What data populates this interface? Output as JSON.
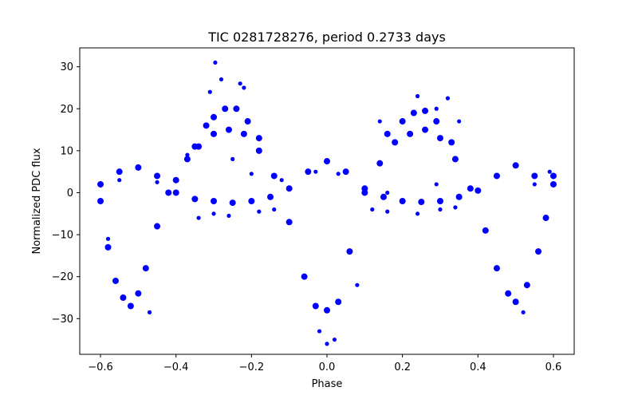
{
  "chart_data": {
    "type": "scatter",
    "title": "TIC 0281728276, period 0.2733 days",
    "xlabel": "Phase",
    "ylabel": "Normalized PDC flux",
    "xlim": [
      -0.655,
      0.655
    ],
    "ylim": [
      -38.5,
      34.5
    ],
    "xticks": [
      -0.6,
      -0.4,
      -0.2,
      0.0,
      0.2,
      0.4,
      0.6
    ],
    "xtick_labels": [
      "−0.6",
      "−0.4",
      "−0.2",
      "0.0",
      "0.2",
      "0.4",
      "0.6"
    ],
    "yticks": [
      -30,
      -20,
      -10,
      0,
      10,
      20,
      30
    ],
    "ytick_labels": [
      "−30",
      "−20",
      "−10",
      "0",
      "10",
      "20",
      "30"
    ],
    "grid": false,
    "marker_color": "#0000ff",
    "series": [
      {
        "values": [
          {
            "x": -0.6,
            "y": -2
          },
          {
            "x": -0.58,
            "y": -13
          },
          {
            "x": -0.56,
            "y": -21
          },
          {
            "x": -0.54,
            "y": -25
          },
          {
            "x": -0.52,
            "y": -27
          },
          {
            "x": -0.5,
            "y": -24
          },
          {
            "x": -0.48,
            "y": -18
          },
          {
            "x": -0.45,
            "y": -8
          },
          {
            "x": -0.42,
            "y": 0
          },
          {
            "x": -0.4,
            "y": 3
          },
          {
            "x": -0.37,
            "y": 8
          },
          {
            "x": -0.34,
            "y": 11
          },
          {
            "x": -0.3,
            "y": 14
          },
          {
            "x": -0.26,
            "y": 15
          },
          {
            "x": -0.22,
            "y": 14
          },
          {
            "x": -0.18,
            "y": 10
          },
          {
            "x": -0.14,
            "y": 4
          },
          {
            "x": -0.1,
            "y": -7
          },
          {
            "x": -0.06,
            "y": -20
          },
          {
            "x": -0.03,
            "y": -27
          },
          {
            "x": 0.0,
            "y": -28
          },
          {
            "x": 0.03,
            "y": -26
          },
          {
            "x": 0.06,
            "y": -14
          },
          {
            "x": 0.1,
            "y": 0
          },
          {
            "x": 0.14,
            "y": 7
          },
          {
            "x": 0.18,
            "y": 12
          },
          {
            "x": 0.22,
            "y": 14
          },
          {
            "x": 0.26,
            "y": 15
          },
          {
            "x": 0.3,
            "y": 13
          },
          {
            "x": 0.34,
            "y": 8
          },
          {
            "x": 0.38,
            "y": 1
          },
          {
            "x": 0.42,
            "y": -9
          },
          {
            "x": 0.45,
            "y": -18
          },
          {
            "x": 0.48,
            "y": -24
          },
          {
            "x": 0.5,
            "y": -26
          },
          {
            "x": 0.53,
            "y": -22
          },
          {
            "x": 0.56,
            "y": -14
          },
          {
            "x": 0.58,
            "y": -6
          },
          {
            "x": 0.6,
            "y": 4
          }
        ]
      },
      {
        "values": [
          {
            "x": -0.6,
            "y": 2
          },
          {
            "x": -0.55,
            "y": 5
          },
          {
            "x": -0.5,
            "y": 6
          },
          {
            "x": -0.45,
            "y": 4
          },
          {
            "x": -0.4,
            "y": 0
          },
          {
            "x": -0.35,
            "y": -1.5
          },
          {
            "x": -0.3,
            "y": -2
          },
          {
            "x": -0.25,
            "y": -2.4
          },
          {
            "x": -0.2,
            "y": -2
          },
          {
            "x": -0.15,
            "y": -1
          },
          {
            "x": -0.1,
            "y": 1
          },
          {
            "x": -0.05,
            "y": 5
          },
          {
            "x": 0.0,
            "y": 7.5
          },
          {
            "x": 0.05,
            "y": 5
          },
          {
            "x": 0.1,
            "y": 1
          },
          {
            "x": 0.15,
            "y": -1
          },
          {
            "x": 0.2,
            "y": -2
          },
          {
            "x": 0.25,
            "y": -2.2
          },
          {
            "x": 0.3,
            "y": -2
          },
          {
            "x": 0.35,
            "y": -1
          },
          {
            "x": 0.4,
            "y": 0.5
          },
          {
            "x": 0.45,
            "y": 4
          },
          {
            "x": 0.5,
            "y": 6.5
          },
          {
            "x": 0.55,
            "y": 4
          },
          {
            "x": 0.6,
            "y": 2
          }
        ]
      },
      {
        "values": [
          {
            "x": -0.35,
            "y": 11
          },
          {
            "x": -0.32,
            "y": 16
          },
          {
            "x": -0.3,
            "y": 18
          },
          {
            "x": -0.27,
            "y": 20
          },
          {
            "x": -0.24,
            "y": 20
          },
          {
            "x": -0.21,
            "y": 17
          },
          {
            "x": -0.18,
            "y": 13
          },
          {
            "x": 0.16,
            "y": 14
          },
          {
            "x": 0.2,
            "y": 17
          },
          {
            "x": 0.23,
            "y": 19
          },
          {
            "x": 0.26,
            "y": 19.5
          },
          {
            "x": 0.29,
            "y": 17
          },
          {
            "x": 0.33,
            "y": 12
          }
        ]
      },
      {
        "values": [
          {
            "x": -0.296,
            "y": 31
          },
          {
            "x": -0.28,
            "y": 27
          },
          {
            "x": -0.31,
            "y": 24
          },
          {
            "x": -0.23,
            "y": 26
          },
          {
            "x": -0.22,
            "y": 25
          },
          {
            "x": -0.25,
            "y": 8
          },
          {
            "x": -0.2,
            "y": 4.5
          },
          {
            "x": 0.24,
            "y": 23
          },
          {
            "x": 0.32,
            "y": 22.5
          },
          {
            "x": 0.14,
            "y": 17
          },
          {
            "x": 0.35,
            "y": 17
          },
          {
            "x": 0.29,
            "y": 20
          },
          {
            "x": -0.37,
            "y": 9
          },
          {
            "x": -0.58,
            "y": -11
          },
          {
            "x": -0.47,
            "y": -28.5
          },
          {
            "x": 0.0,
            "y": -36
          },
          {
            "x": 0.02,
            "y": -35
          },
          {
            "x": -0.02,
            "y": -33
          },
          {
            "x": 0.08,
            "y": -22
          },
          {
            "x": 0.52,
            "y": -28.5
          },
          {
            "x": -0.34,
            "y": -6
          },
          {
            "x": -0.3,
            "y": -5
          },
          {
            "x": -0.26,
            "y": -5.5
          },
          {
            "x": -0.18,
            "y": -4.5
          },
          {
            "x": -0.14,
            "y": -4
          },
          {
            "x": 0.12,
            "y": -4
          },
          {
            "x": 0.16,
            "y": -4.5
          },
          {
            "x": 0.24,
            "y": -5
          },
          {
            "x": 0.3,
            "y": -4
          },
          {
            "x": 0.34,
            "y": -3.5
          },
          {
            "x": 0.29,
            "y": 2
          },
          {
            "x": -0.12,
            "y": 3
          },
          {
            "x": 0.16,
            "y": 0
          },
          {
            "x": -0.03,
            "y": 5
          },
          {
            "x": 0.03,
            "y": 4.5
          },
          {
            "x": 0.45,
            "y": 4
          },
          {
            "x": 0.55,
            "y": 2
          },
          {
            "x": -0.55,
            "y": 3
          },
          {
            "x": -0.45,
            "y": 2.5
          },
          {
            "x": 0.59,
            "y": 5
          }
        ]
      }
    ]
  }
}
